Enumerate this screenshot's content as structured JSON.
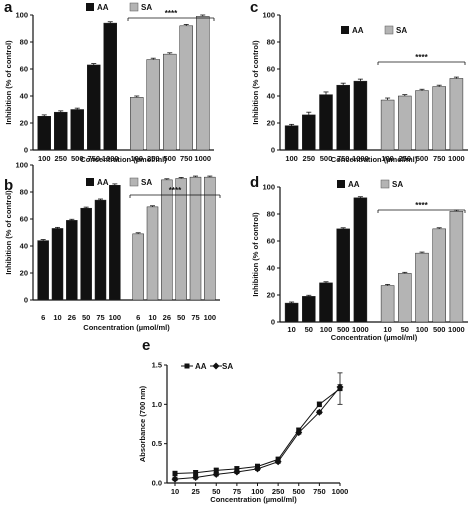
{
  "chart_data": [
    {
      "id": "a",
      "type": "bar",
      "panel_label": "a",
      "categories": [
        "100",
        "250",
        "500",
        "750",
        "1000",
        "100",
        "250",
        "500",
        "750",
        "1000"
      ],
      "series": [
        {
          "name": "AA",
          "values": [
            25,
            28,
            30,
            63,
            94,
            null,
            null,
            null,
            null,
            null
          ],
          "errors": [
            1,
            1,
            1,
            1,
            1,
            0,
            0,
            0,
            0,
            0
          ],
          "color": "#111111"
        },
        {
          "name": "SA",
          "values": [
            null,
            null,
            null,
            null,
            null,
            39,
            67,
            71,
            92,
            99
          ],
          "errors": [
            0,
            0,
            0,
            0,
            0,
            1,
            1,
            1,
            1,
            1
          ],
          "color": "#b4b4b4"
        }
      ],
      "xlabel": "Concentration (µmol/ml)",
      "ylabel": "Inhibition (% of control)",
      "ylim": [
        0,
        100
      ],
      "yticks": [
        "0",
        "20",
        "40",
        "60",
        "80",
        "100"
      ],
      "legend": [
        "AA",
        "SA"
      ],
      "significance": "****"
    },
    {
      "id": "c",
      "type": "bar",
      "panel_label": "c",
      "categories": [
        "100",
        "250",
        "500",
        "750",
        "1000",
        "100",
        "250",
        "500",
        "750",
        "1000"
      ],
      "series": [
        {
          "name": "AA",
          "values": [
            18,
            26,
            41,
            48,
            51,
            null,
            null,
            null,
            null,
            null
          ],
          "errors": [
            1,
            2,
            2,
            1.5,
            1.5,
            0,
            0,
            0,
            0,
            0
          ],
          "color": "#111111"
        },
        {
          "name": "SA",
          "values": [
            null,
            null,
            null,
            null,
            null,
            37,
            40,
            44,
            47,
            53
          ],
          "errors": [
            0,
            0,
            0,
            0,
            0,
            1.5,
            1,
            1,
            1,
            1
          ],
          "color": "#b4b4b4"
        }
      ],
      "xlabel": "Concentration (µmol/ml)",
      "ylabel": "Inhibition (% of control)",
      "ylim": [
        0,
        100
      ],
      "yticks": [
        "0",
        "20",
        "40",
        "60",
        "80",
        "100"
      ],
      "legend": [
        "AA",
        "SA"
      ],
      "significance": "****"
    },
    {
      "id": "b",
      "type": "bar",
      "panel_label": "b",
      "categories": [
        "6",
        "10",
        "26",
        "50",
        "75",
        "100",
        "6",
        "10",
        "26",
        "50",
        "75",
        "100"
      ],
      "series": [
        {
          "name": "AA",
          "values": [
            44,
            53,
            59,
            68,
            74,
            85,
            null,
            null,
            null,
            null,
            null,
            null
          ],
          "errors": [
            0.8,
            0.8,
            0.8,
            0.8,
            0.8,
            1,
            0,
            0,
            0,
            0,
            0,
            0
          ],
          "color": "#111111"
        },
        {
          "name": "SA",
          "values": [
            null,
            null,
            null,
            null,
            null,
            null,
            49,
            69,
            89,
            90,
            91,
            91
          ],
          "errors": [
            0,
            0,
            0,
            0,
            0,
            0,
            0.8,
            0.8,
            0.8,
            0.8,
            0.8,
            0.8
          ],
          "color": "#b4b4b4"
        }
      ],
      "xlabel": "Concentration (µmol/ml)",
      "ylabel": "Inhibition (% of control)",
      "ylim": [
        0,
        100
      ],
      "yticks": [
        "0",
        "20",
        "40",
        "60",
        "80",
        "100"
      ],
      "legend": [
        "AA",
        "SA"
      ],
      "significance": "****"
    },
    {
      "id": "d",
      "type": "bar",
      "panel_label": "d",
      "categories": [
        "10",
        "50",
        "100",
        "500",
        "1000",
        "10",
        "50",
        "100",
        "500",
        "1000"
      ],
      "series": [
        {
          "name": "AA",
          "values": [
            14,
            19,
            29,
            69,
            92,
            null,
            null,
            null,
            null,
            null
          ],
          "errors": [
            0.8,
            0.8,
            0.8,
            0.8,
            0.8,
            0,
            0,
            0,
            0,
            0
          ],
          "color": "#111111"
        },
        {
          "name": "SA",
          "values": [
            null,
            null,
            null,
            null,
            null,
            27,
            36,
            51,
            69,
            82
          ],
          "errors": [
            0,
            0,
            0,
            0,
            0,
            0.8,
            0.8,
            0.8,
            0.8,
            0.8
          ],
          "color": "#b4b4b4"
        }
      ],
      "xlabel": "Concentration (µmol/ml)",
      "ylabel": "Inhibition (% of control)",
      "ylim": [
        0,
        100
      ],
      "yticks": [
        "0",
        "20",
        "40",
        "60",
        "80",
        "100"
      ],
      "legend": [
        "AA",
        "SA"
      ],
      "significance": "****"
    },
    {
      "id": "e",
      "type": "line",
      "panel_label": "e",
      "categories": [
        "10",
        "25",
        "50",
        "75",
        "100",
        "250",
        "500",
        "750",
        "1000"
      ],
      "series": [
        {
          "name": "AA",
          "marker": "square",
          "values": [
            0.12,
            0.13,
            0.16,
            0.18,
            0.21,
            0.3,
            0.67,
            1.0,
            1.2
          ],
          "errors": [
            0.03,
            0.03,
            0.03,
            0.03,
            0.03,
            0.03,
            0.03,
            0.03,
            0.2
          ]
        },
        {
          "name": "SA",
          "marker": "diamond",
          "values": [
            0.05,
            0.07,
            0.11,
            0.14,
            0.18,
            0.27,
            0.64,
            0.9,
            1.22
          ],
          "errors": [
            0.02,
            0.02,
            0.02,
            0.02,
            0.02,
            0.02,
            0.02,
            0.02,
            0.03
          ]
        }
      ],
      "xlabel": "Concentration (µmol/ml)",
      "ylabel": "Absorbance (700 nm)",
      "ylim": [
        0,
        1.5
      ],
      "yticks": [
        "0.0",
        "0.5",
        "1.0",
        "1.5"
      ],
      "legend": [
        "AA",
        "SA"
      ]
    }
  ]
}
